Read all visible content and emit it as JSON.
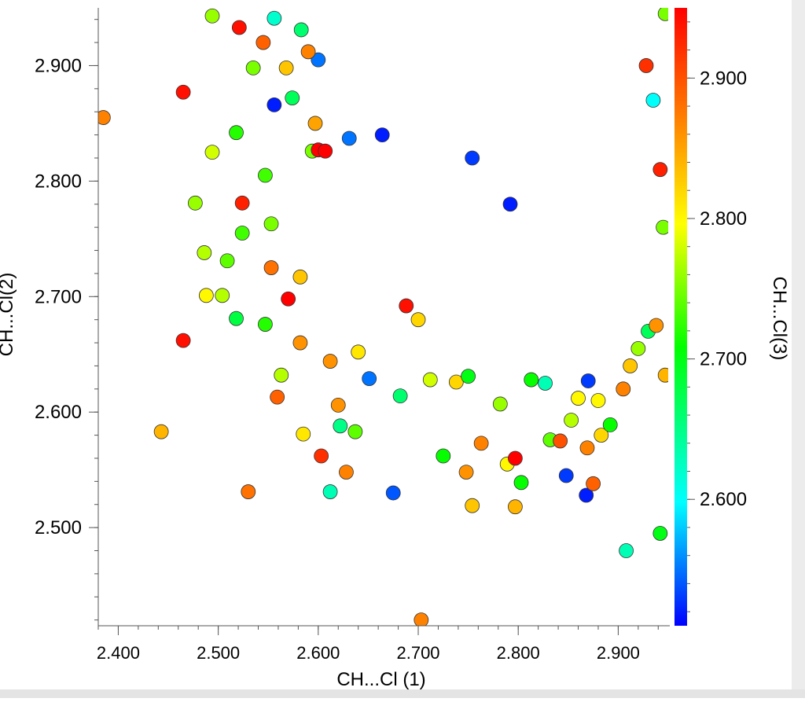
{
  "chart_data": {
    "type": "scatter",
    "xlabel": "CH...Cl (1)",
    "ylabel": "CH...Cl(2)",
    "colorbar_label": "CH...Cl(3)",
    "xlim": [
      2.38,
      2.95
    ],
    "ylim": [
      2.415,
      2.95
    ],
    "color_range": [
      2.51,
      2.95
    ],
    "x_ticks": [
      "2.400",
      "2.500",
      "2.600",
      "2.700",
      "2.800",
      "2.900"
    ],
    "y_ticks": [
      "2.500",
      "2.600",
      "2.700",
      "2.800",
      "2.900"
    ],
    "colorbar_ticks": [
      "2.600",
      "2.700",
      "2.800",
      "2.900"
    ],
    "grid": false,
    "colormap": [
      "#0000ff",
      "#00ffff",
      "#00ff00",
      "#ffff00",
      "#ff8000",
      "#ff0000"
    ],
    "points": [
      [
        2.385,
        2.855,
        2.87
      ],
      [
        2.465,
        2.877,
        2.94
      ],
      [
        2.465,
        2.662,
        2.94
      ],
      [
        2.443,
        2.583,
        2.84
      ],
      [
        2.477,
        2.781,
        2.76
      ],
      [
        2.486,
        2.738,
        2.77
      ],
      [
        2.488,
        2.701,
        2.8
      ],
      [
        2.494,
        2.825,
        2.78
      ],
      [
        2.504,
        2.701,
        2.77
      ],
      [
        2.509,
        2.731,
        2.74
      ],
      [
        2.518,
        2.681,
        2.68
      ],
      [
        2.518,
        2.842,
        2.72
      ],
      [
        2.524,
        2.781,
        2.93
      ],
      [
        2.524,
        2.755,
        2.73
      ],
      [
        2.53,
        2.531,
        2.88
      ],
      [
        2.535,
        2.898,
        2.75
      ],
      [
        2.547,
        2.805,
        2.73
      ],
      [
        2.547,
        2.676,
        2.72
      ],
      [
        2.553,
        2.763,
        2.75
      ],
      [
        2.553,
        2.725,
        2.88
      ],
      [
        2.556,
        2.866,
        2.52
      ],
      [
        2.559,
        2.613,
        2.89
      ],
      [
        2.563,
        2.632,
        2.77
      ],
      [
        2.57,
        2.698,
        2.95
      ],
      [
        2.574,
        2.872,
        2.67
      ],
      [
        2.582,
        2.717,
        2.83
      ],
      [
        2.585,
        2.581,
        2.81
      ],
      [
        2.582,
        2.66,
        2.86
      ],
      [
        2.594,
        2.826,
        2.75
      ],
      [
        2.597,
        2.85,
        2.85
      ],
      [
        2.6,
        2.905,
        2.55
      ],
      [
        2.6,
        2.827,
        2.95
      ],
      [
        2.603,
        2.562,
        2.92
      ],
      [
        2.607,
        2.826,
        2.95
      ],
      [
        2.612,
        2.644,
        2.86
      ],
      [
        2.612,
        2.531,
        2.63
      ],
      [
        2.62,
        2.606,
        2.86
      ],
      [
        2.622,
        2.588,
        2.65
      ],
      [
        2.628,
        2.548,
        2.87
      ],
      [
        2.631,
        2.837,
        2.55
      ],
      [
        2.637,
        2.583,
        2.74
      ],
      [
        2.64,
        2.652,
        2.81
      ],
      [
        2.651,
        2.629,
        2.55
      ],
      [
        2.664,
        2.84,
        2.52
      ],
      [
        2.675,
        2.53,
        2.54
      ],
      [
        2.682,
        2.614,
        2.66
      ],
      [
        2.688,
        2.692,
        2.94
      ],
      [
        2.7,
        2.68,
        2.82
      ],
      [
        2.703,
        2.42,
        2.87
      ],
      [
        2.712,
        2.628,
        2.78
      ],
      [
        2.725,
        2.562,
        2.71
      ],
      [
        2.738,
        2.626,
        2.82
      ],
      [
        2.748,
        2.548,
        2.86
      ],
      [
        2.75,
        2.631,
        2.7
      ],
      [
        2.754,
        2.519,
        2.83
      ],
      [
        2.754,
        2.82,
        2.53
      ],
      [
        2.763,
        2.573,
        2.87
      ],
      [
        2.782,
        2.607,
        2.76
      ],
      [
        2.789,
        2.555,
        2.8
      ],
      [
        2.792,
        2.78,
        2.52
      ],
      [
        2.797,
        2.518,
        2.84
      ],
      [
        2.797,
        2.56,
        2.95
      ],
      [
        2.803,
        2.539,
        2.71
      ],
      [
        2.813,
        2.628,
        2.71
      ],
      [
        2.827,
        2.625,
        2.63
      ],
      [
        2.832,
        2.576,
        2.74
      ],
      [
        2.842,
        2.575,
        2.9
      ],
      [
        2.848,
        2.545,
        2.53
      ],
      [
        2.853,
        2.593,
        2.77
      ],
      [
        2.86,
        2.612,
        2.8
      ],
      [
        2.868,
        2.528,
        2.52
      ],
      [
        2.869,
        2.569,
        2.87
      ],
      [
        2.87,
        2.627,
        2.53
      ],
      [
        2.875,
        2.538,
        2.89
      ],
      [
        2.88,
        2.61,
        2.8
      ],
      [
        2.883,
        2.58,
        2.82
      ],
      [
        2.892,
        2.589,
        2.71
      ],
      [
        2.905,
        2.62,
        2.87
      ],
      [
        2.908,
        2.48,
        2.63
      ],
      [
        2.912,
        2.64,
        2.83
      ],
      [
        2.92,
        2.655,
        2.76
      ],
      [
        2.93,
        2.67,
        2.67
      ],
      [
        2.938,
        2.675,
        2.86
      ],
      [
        2.942,
        2.495,
        2.7
      ],
      [
        2.947,
        2.632,
        2.84
      ],
      [
        2.945,
        2.76,
        2.75
      ],
      [
        2.942,
        2.81,
        2.93
      ],
      [
        2.935,
        2.87,
        2.6
      ],
      [
        2.928,
        2.9,
        2.92
      ],
      [
        2.947,
        2.945,
        2.75
      ],
      [
        2.494,
        2.943,
        2.76
      ],
      [
        2.521,
        2.933,
        2.94
      ],
      [
        2.545,
        2.92,
        2.89
      ],
      [
        2.556,
        2.941,
        2.62
      ],
      [
        2.568,
        2.898,
        2.83
      ],
      [
        2.583,
        2.931,
        2.66
      ],
      [
        2.59,
        2.912,
        2.87
      ]
    ]
  }
}
